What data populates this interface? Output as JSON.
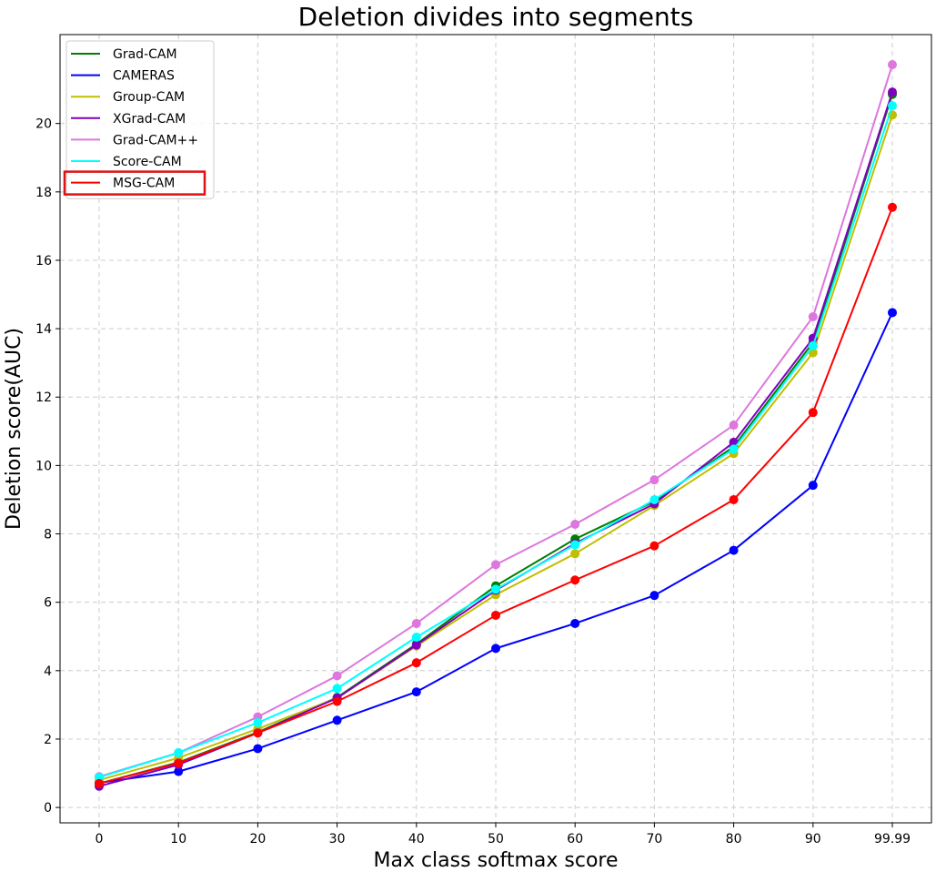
{
  "chart_data": {
    "type": "line",
    "title": "Deletion divides into segments",
    "xlabel": "Max class softmax score",
    "ylabel": "Deletion score(AUC)",
    "categories": [
      "0",
      "10",
      "20",
      "30",
      "40",
      "50",
      "60",
      "70",
      "80",
      "90",
      "99.99"
    ],
    "yticks": [
      0,
      2,
      4,
      6,
      8,
      10,
      12,
      14,
      16,
      18,
      20
    ],
    "ylim": [
      -0.45,
      22.6
    ],
    "grid": true,
    "legend_position": "top-left",
    "highlighted_series": "MSG-CAM",
    "highlight_color": "#dd1111",
    "series": [
      {
        "name": "Grad-CAM",
        "color": "#007f00",
        "values": [
          0.7,
          1.32,
          2.2,
          3.22,
          4.78,
          6.48,
          7.85,
          8.95,
          10.55,
          13.6,
          20.85
        ]
      },
      {
        "name": "CAMERAS",
        "color": "#0000ff",
        "values": [
          0.72,
          1.05,
          1.72,
          2.55,
          3.38,
          4.65,
          5.38,
          6.2,
          7.52,
          9.42,
          14.47
        ]
      },
      {
        "name": "Group-CAM",
        "color": "#bfbf00",
        "values": [
          0.8,
          1.45,
          2.3,
          3.2,
          4.72,
          6.22,
          7.42,
          8.83,
          10.35,
          13.3,
          20.25
        ]
      },
      {
        "name": "XGrad-CAM",
        "color": "#7f00bf",
        "values": [
          0.62,
          1.25,
          2.18,
          3.2,
          4.75,
          6.35,
          7.72,
          8.88,
          10.68,
          13.72,
          20.92
        ]
      },
      {
        "name": "Grad-CAM++",
        "color": "#dd77dd",
        "values": [
          0.9,
          1.6,
          2.65,
          3.85,
          5.38,
          7.1,
          8.28,
          9.58,
          11.18,
          14.35,
          21.72
        ]
      },
      {
        "name": "Score-CAM",
        "color": "#00ffff",
        "values": [
          0.88,
          1.6,
          2.48,
          3.48,
          4.98,
          6.38,
          7.68,
          9.0,
          10.48,
          13.5,
          20.52
        ]
      },
      {
        "name": "MSG-CAM",
        "color": "#ff0000",
        "values": [
          0.7,
          1.3,
          2.18,
          3.1,
          4.23,
          5.62,
          6.65,
          7.65,
          9.0,
          11.55,
          17.55
        ]
      }
    ]
  }
}
